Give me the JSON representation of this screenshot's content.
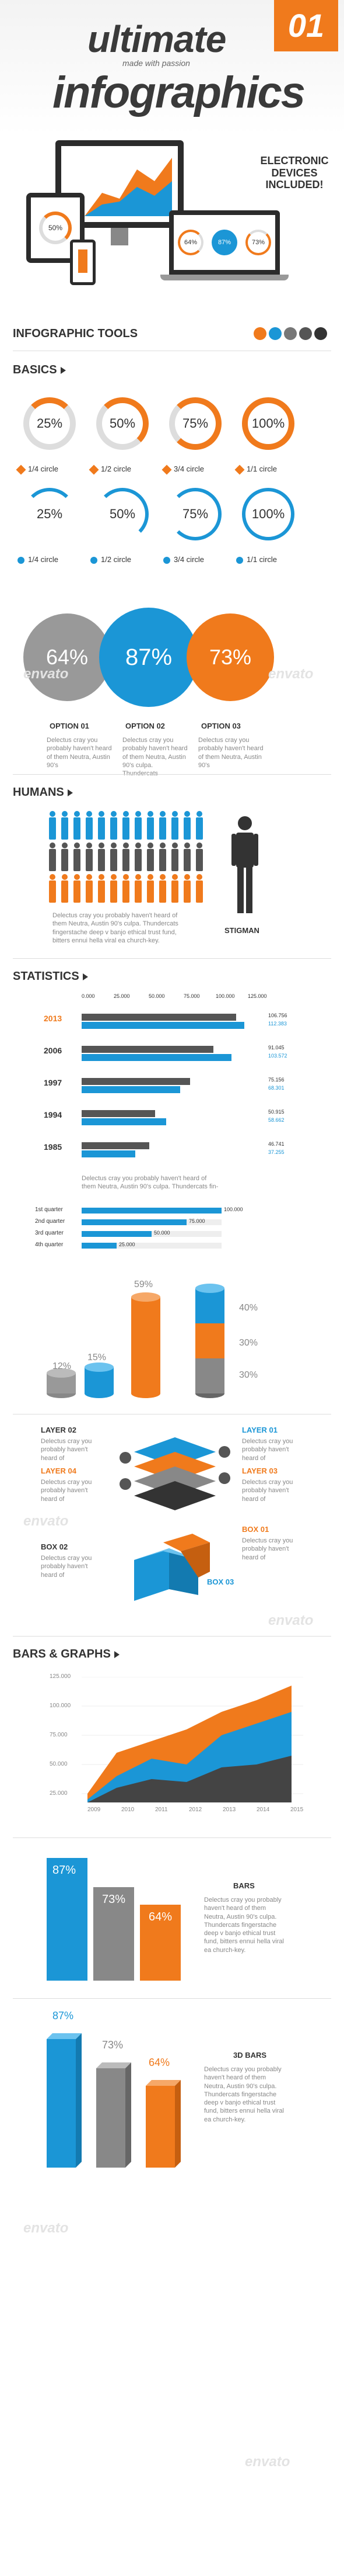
{
  "header": {
    "title_line1": "ultimate",
    "tagline": "made with passion",
    "title_line2": "infographics",
    "number": "01",
    "devices_note": "ELECTRONIC DEVICES INCLUDED!",
    "monitor_pct": "50%",
    "laptop_pcts": [
      "64%",
      "87%",
      "73%"
    ]
  },
  "tools": {
    "title": "INFOGRAPHIC TOOLS",
    "swatches": [
      "#f07a1c",
      "#1b96d6",
      "#777777",
      "#555555",
      "#333333"
    ]
  },
  "basics": {
    "title": "BASICS",
    "orange_rings": [
      "25%",
      "50%",
      "75%",
      "100%"
    ],
    "orange_labels": [
      "1/4 circle",
      "1/2 circle",
      "3/4 circle",
      "1/1 circle"
    ],
    "blue_rings": [
      "25%",
      "50%",
      "75%",
      "100%"
    ],
    "blue_labels": [
      "1/4 circle",
      "1/2 circle",
      "3/4 circle",
      "1/1 circle"
    ]
  },
  "options": {
    "circles": [
      "64%",
      "87%",
      "73%"
    ],
    "labels": [
      "OPTION 01",
      "OPTION 02",
      "OPTION 03"
    ],
    "text": [
      "Delectus cray you probably haven't heard of them Neutra, Austin 90's",
      "Delectus cray you probably haven't heard of them Neutra, Austin 90's culpa. Thundercats",
      "Delectus cray you probably haven't heard of them Neutra, Austin 90's"
    ]
  },
  "humans": {
    "title": "HUMANS",
    "stigman": "STIGMAN",
    "text": "Delectus cray you probably haven't heard of them Neutra, Austin 90's culpa. Thundercats fingerstache deep v banjo ethical trust fund, bitters ennui hella viral ea church-key."
  },
  "statistics": {
    "title": "STATISTICS",
    "axis": [
      "0.000",
      "25.000",
      "50.000",
      "75.000",
      "100.000",
      "125.000"
    ],
    "rows": [
      {
        "year": "2013",
        "v1": "106.756",
        "v2": "112.383"
      },
      {
        "year": "2006",
        "v1": "91.045",
        "v2": "103.572"
      },
      {
        "year": "1997",
        "v1": "75.156",
        "v2": "68.301"
      },
      {
        "year": "1994",
        "v1": "50.915",
        "v2": "58.662"
      },
      {
        "year": "1985",
        "v1": "46.741",
        "v2": "37.255"
      }
    ],
    "note": "Delectus cray you probably haven't heard of them Neutra, Austin 90's culpa. Thundercats fin-",
    "quarters": [
      {
        "label": "1st quarter",
        "value": "100.000",
        "frac": 1.0
      },
      {
        "label": "2nd quarter",
        "value": "75.000",
        "frac": 0.75
      },
      {
        "label": "3rd quarter",
        "value": "50.000",
        "frac": 0.5
      },
      {
        "label": "4th quarter",
        "value": "25.000",
        "frac": 0.25
      }
    ],
    "cylinders": [
      "12%",
      "15%",
      "59%",
      "40%",
      "30%",
      "30%"
    ]
  },
  "layers": {
    "labels": [
      "LAYER 02",
      "LAYER 04",
      "LAYER 01",
      "LAYER 03"
    ],
    "text": "Delectus cray you probably haven't heard of",
    "box_labels": [
      "BOX 02",
      "BOX 01",
      "BOX 03"
    ]
  },
  "bars_graphs": {
    "title": "BARS & GRAPHS",
    "yticks": [
      "125.000",
      "100.000",
      "75.000",
      "50.000",
      "25.000"
    ],
    "xticks": [
      "2009",
      "2010",
      "2011",
      "2012",
      "2013",
      "2014",
      "2015"
    ],
    "bars_label": "BARS",
    "bars_values": [
      "87%",
      "73%",
      "64%"
    ],
    "bars_text": "Delectus cray you probably haven't heard of them Neutra, Austin 90's culpa. Thundercats fingerstache deep v banjo ethical trust fund, bitters ennui hella viral ea church-key.",
    "bars3d_label": "3D BARS",
    "bars3d_values": [
      "87%",
      "73%",
      "64%"
    ]
  },
  "watermark": "envato"
}
